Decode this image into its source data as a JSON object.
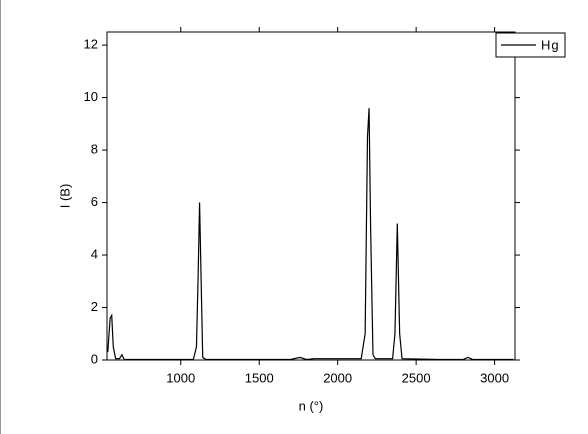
{
  "chart_data": {
    "type": "line",
    "x_label": "n (°)",
    "y_label": "I (B)",
    "x": [
      535,
      550,
      560,
      570,
      585,
      610,
      625,
      640,
      1080,
      1100,
      1110,
      1120,
      1130,
      1140,
      1160,
      1700,
      1760,
      1800,
      1850,
      1950,
      2150,
      2175,
      2190,
      2200,
      2210,
      2225,
      2240,
      2350,
      2365,
      2380,
      2395,
      2410,
      2650,
      2800,
      2830,
      2860,
      3120
    ],
    "series": [
      {
        "name": "Hg",
        "color": "#000000",
        "values": [
          0.3,
          1.6,
          1.7,
          0.5,
          0.05,
          0.05,
          0.2,
          0.02,
          0.02,
          0.5,
          3,
          6,
          3,
          0.1,
          0.02,
          0.02,
          0.1,
          0.02,
          0.05,
          0.05,
          0.05,
          1,
          8.5,
          9.6,
          5,
          0.2,
          0.05,
          0.05,
          1,
          5.2,
          1,
          0.05,
          0.02,
          0.02,
          0.1,
          0.02,
          0.02
        ]
      }
    ],
    "xlim": [
      530,
      3130
    ],
    "xticks": [
      1000,
      1500,
      2000,
      2500,
      3000
    ],
    "ylim": [
      0,
      12.5
    ],
    "yticks": [
      0,
      2,
      4,
      6,
      8,
      10,
      12
    ],
    "legend": "upper right"
  }
}
